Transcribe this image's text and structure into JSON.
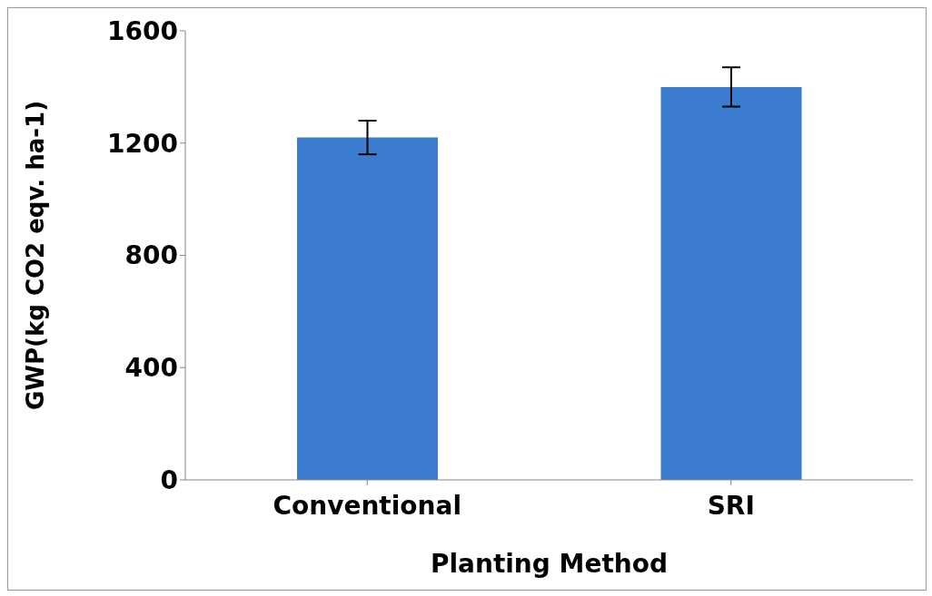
{
  "chart_data": {
    "type": "bar",
    "xlabel": "Planting Method",
    "ylabel": "GWP(kg CO2 eqv. ha-1)",
    "categories": [
      "Conventional",
      "SRI"
    ],
    "values": [
      1220,
      1400
    ],
    "errors": [
      60,
      70
    ],
    "color": "#3b7bd0",
    "ylim": [
      0,
      1600
    ],
    "yticks": [
      0,
      400,
      800,
      1200,
      1600
    ],
    "grid": false,
    "legend": false
  }
}
